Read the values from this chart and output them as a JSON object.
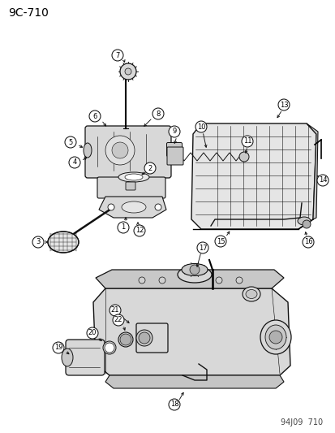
{
  "title": "9C-710",
  "footer": "94J09  710",
  "bg_color": "#ffffff",
  "title_fontsize": 10,
  "footer_fontsize": 7,
  "fig_width": 4.14,
  "fig_height": 5.33,
  "dpi": 100,
  "label_r": 7,
  "label_fs": 6.0,
  "lw": 0.7,
  "gray1": "#c8c8c8",
  "gray2": "#d8d8d8",
  "gray3": "#b0b0b0",
  "ec": "#111111"
}
